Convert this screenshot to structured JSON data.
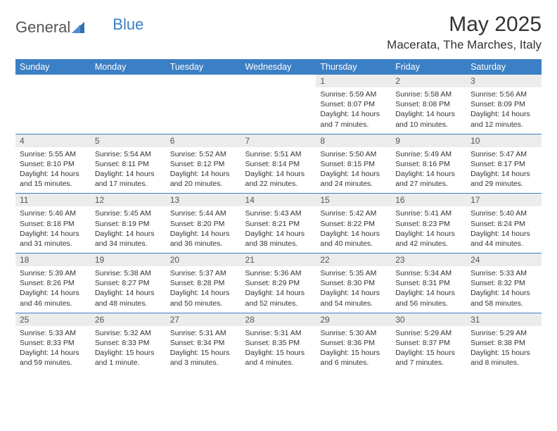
{
  "brand": {
    "part1": "General",
    "part2": "Blue"
  },
  "title": "May 2025",
  "location": "Macerata, The Marches, Italy",
  "colors": {
    "header_bg": "#3b7fc4",
    "header_text": "#ffffff",
    "daynum_bg": "#ececec",
    "daynum_text": "#555555",
    "rule": "#3b7fc4"
  },
  "dayNames": [
    "Sunday",
    "Monday",
    "Tuesday",
    "Wednesday",
    "Thursday",
    "Friday",
    "Saturday"
  ],
  "weeks": [
    [
      null,
      null,
      null,
      null,
      {
        "n": "1",
        "sr": "5:59 AM",
        "ss": "8:07 PM",
        "dl": "14 hours and 7 minutes."
      },
      {
        "n": "2",
        "sr": "5:58 AM",
        "ss": "8:08 PM",
        "dl": "14 hours and 10 minutes."
      },
      {
        "n": "3",
        "sr": "5:56 AM",
        "ss": "8:09 PM",
        "dl": "14 hours and 12 minutes."
      }
    ],
    [
      {
        "n": "4",
        "sr": "5:55 AM",
        "ss": "8:10 PM",
        "dl": "14 hours and 15 minutes."
      },
      {
        "n": "5",
        "sr": "5:54 AM",
        "ss": "8:11 PM",
        "dl": "14 hours and 17 minutes."
      },
      {
        "n": "6",
        "sr": "5:52 AM",
        "ss": "8:12 PM",
        "dl": "14 hours and 20 minutes."
      },
      {
        "n": "7",
        "sr": "5:51 AM",
        "ss": "8:14 PM",
        "dl": "14 hours and 22 minutes."
      },
      {
        "n": "8",
        "sr": "5:50 AM",
        "ss": "8:15 PM",
        "dl": "14 hours and 24 minutes."
      },
      {
        "n": "9",
        "sr": "5:49 AM",
        "ss": "8:16 PM",
        "dl": "14 hours and 27 minutes."
      },
      {
        "n": "10",
        "sr": "5:47 AM",
        "ss": "8:17 PM",
        "dl": "14 hours and 29 minutes."
      }
    ],
    [
      {
        "n": "11",
        "sr": "5:46 AM",
        "ss": "8:18 PM",
        "dl": "14 hours and 31 minutes."
      },
      {
        "n": "12",
        "sr": "5:45 AM",
        "ss": "8:19 PM",
        "dl": "14 hours and 34 minutes."
      },
      {
        "n": "13",
        "sr": "5:44 AM",
        "ss": "8:20 PM",
        "dl": "14 hours and 36 minutes."
      },
      {
        "n": "14",
        "sr": "5:43 AM",
        "ss": "8:21 PM",
        "dl": "14 hours and 38 minutes."
      },
      {
        "n": "15",
        "sr": "5:42 AM",
        "ss": "8:22 PM",
        "dl": "14 hours and 40 minutes."
      },
      {
        "n": "16",
        "sr": "5:41 AM",
        "ss": "8:23 PM",
        "dl": "14 hours and 42 minutes."
      },
      {
        "n": "17",
        "sr": "5:40 AM",
        "ss": "8:24 PM",
        "dl": "14 hours and 44 minutes."
      }
    ],
    [
      {
        "n": "18",
        "sr": "5:39 AM",
        "ss": "8:26 PM",
        "dl": "14 hours and 46 minutes."
      },
      {
        "n": "19",
        "sr": "5:38 AM",
        "ss": "8:27 PM",
        "dl": "14 hours and 48 minutes."
      },
      {
        "n": "20",
        "sr": "5:37 AM",
        "ss": "8:28 PM",
        "dl": "14 hours and 50 minutes."
      },
      {
        "n": "21",
        "sr": "5:36 AM",
        "ss": "8:29 PM",
        "dl": "14 hours and 52 minutes."
      },
      {
        "n": "22",
        "sr": "5:35 AM",
        "ss": "8:30 PM",
        "dl": "14 hours and 54 minutes."
      },
      {
        "n": "23",
        "sr": "5:34 AM",
        "ss": "8:31 PM",
        "dl": "14 hours and 56 minutes."
      },
      {
        "n": "24",
        "sr": "5:33 AM",
        "ss": "8:32 PM",
        "dl": "14 hours and 58 minutes."
      }
    ],
    [
      {
        "n": "25",
        "sr": "5:33 AM",
        "ss": "8:33 PM",
        "dl": "14 hours and 59 minutes."
      },
      {
        "n": "26",
        "sr": "5:32 AM",
        "ss": "8:33 PM",
        "dl": "15 hours and 1 minute."
      },
      {
        "n": "27",
        "sr": "5:31 AM",
        "ss": "8:34 PM",
        "dl": "15 hours and 3 minutes."
      },
      {
        "n": "28",
        "sr": "5:31 AM",
        "ss": "8:35 PM",
        "dl": "15 hours and 4 minutes."
      },
      {
        "n": "29",
        "sr": "5:30 AM",
        "ss": "8:36 PM",
        "dl": "15 hours and 6 minutes."
      },
      {
        "n": "30",
        "sr": "5:29 AM",
        "ss": "8:37 PM",
        "dl": "15 hours and 7 minutes."
      },
      {
        "n": "31",
        "sr": "5:29 AM",
        "ss": "8:38 PM",
        "dl": "15 hours and 8 minutes."
      }
    ]
  ],
  "labels": {
    "sunrise": "Sunrise:",
    "sunset": "Sunset:",
    "daylight": "Daylight:"
  }
}
